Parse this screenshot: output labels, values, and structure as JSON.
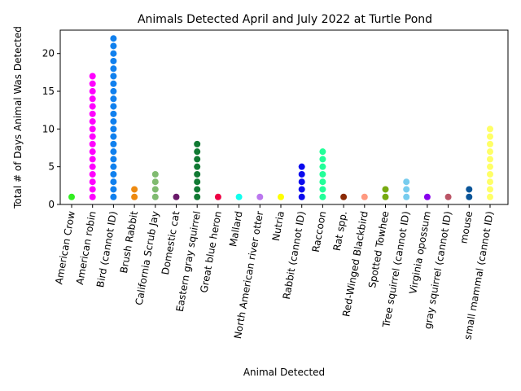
{
  "chart_data": {
    "type": "scatter",
    "title": "Animals Detected April and July 2022 at Turtle Pond",
    "xlabel": "Animal Detected",
    "ylabel": "Total # of Days Animal Was Detected",
    "ylim": [
      0,
      23.1
    ],
    "yticks": [
      0,
      5,
      10,
      15,
      20
    ],
    "grid": false,
    "categories": [
      "American Crow",
      "American robin",
      "Bird (cannot ID)",
      "Brush Rabbit",
      "California Scrub Jay",
      "Domestic cat",
      "Eastern gray squirrel",
      "Great blue heron",
      "Mallard",
      "North American river otter",
      "Nutria",
      "Rabbit (cannot ID)",
      "Raccoon",
      "Rat spp.",
      "Red-Winged Blackbird",
      "Spotted Towhee",
      "Tree squirrel (cannot ID)",
      "Virginia opossum",
      "gray squirrel (cannot ID)",
      "mouse",
      "small mammal (cannot ID)"
    ],
    "max_days": [
      1,
      17,
      22,
      2,
      4,
      1,
      8,
      1,
      1,
      1,
      1,
      5,
      7,
      1,
      1,
      2,
      3,
      1,
      1,
      2,
      10
    ],
    "colors": [
      "#33ee22",
      "#ff00ff",
      "#1080ee",
      "#ee8a10",
      "#80bb70",
      "#6a1a6a",
      "#117a33",
      "#ee0044",
      "#11ffee",
      "#bb77ee",
      "#ffff00",
      "#0a0aee",
      "#22ff99",
      "#8a2a05",
      "#ff9980",
      "#77aa10",
      "#77ccee",
      "#8800ee",
      "#bb5566",
      "#0a5599",
      "#ffff66"
    ]
  }
}
